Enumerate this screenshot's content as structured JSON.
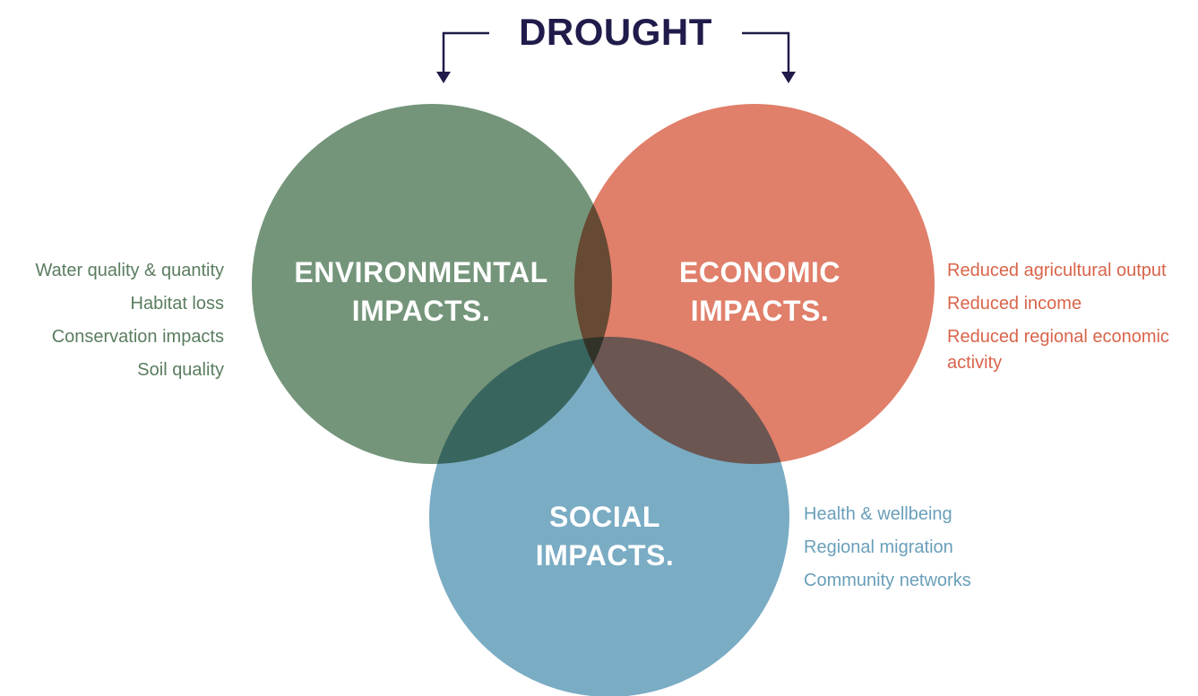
{
  "title": "DROUGHT",
  "circles": [
    {
      "label": [
        "ENVIRONMENTAL",
        "IMPACTS."
      ],
      "items": [
        "Water quality & quantity",
        "Habitat loss",
        "Conservation impacts",
        "Soil quality"
      ]
    },
    {
      "label": [
        "ECONOMIC",
        "IMPACTS."
      ],
      "items": [
        "Reduced agricultural output",
        "Reduced income",
        "Reduced regional economic activity"
      ]
    },
    {
      "label": [
        "SOCIAL",
        "IMPACTS."
      ],
      "items": [
        "Health & wellbeing",
        "Regional migration",
        "Community networks"
      ]
    }
  ]
}
